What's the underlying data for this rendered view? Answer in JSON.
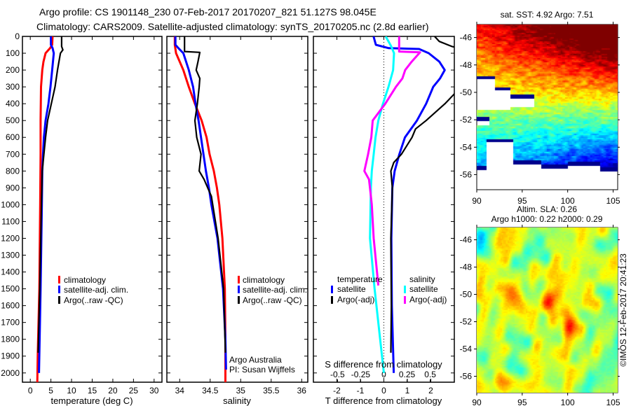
{
  "title": {
    "line1": "Argo profile: CS 1901148_230 07-Feb-2017 20170207_821 51.127S 98.045E",
    "line2": "Climatology: CARS2009. Satellite-adjusted climatology: synTS_20170205.nc (2.8d earlier)"
  },
  "colors": {
    "climatology": "#ff0000",
    "satellite": "#0000ff",
    "argo": "#000000",
    "sat_salinity": "#00ffff",
    "argo_salinity": "#ff00ff"
  },
  "depth_axis": {
    "ylim": [
      0,
      2055
    ],
    "ticks": [
      0,
      100,
      200,
      300,
      400,
      500,
      600,
      700,
      800,
      900,
      1000,
      1100,
      1200,
      1300,
      1400,
      1500,
      1600,
      1700,
      1800,
      1900,
      2000
    ]
  },
  "chart_data": [
    {
      "type": "line",
      "xlabel": "temperature (deg C)",
      "ylabel": "depth",
      "xlim": [
        -1.9,
        31.9
      ],
      "xticks": [
        0,
        5,
        10,
        15,
        20,
        25,
        30
      ],
      "legend": {
        "placement": "lower-left",
        "entries": [
          "climatology",
          "satellite-adj. clim.",
          "Argo(..raw -QC)"
        ]
      },
      "series": [
        {
          "name": "climatology",
          "color": "#ff0000",
          "depth": [
            0,
            50,
            70,
            100,
            150,
            200,
            300,
            500,
            700,
            1000,
            1500,
            1900,
            2055
          ],
          "values": [
            5.4,
            5.3,
            4.8,
            3.7,
            3.2,
            2.9,
            2.6,
            2.5,
            2.5,
            2.4,
            2.2,
            1.8,
            1.7
          ]
        },
        {
          "name": "satellite-adj. clim.",
          "color": "#0000ff",
          "depth": [
            0,
            50,
            70,
            100,
            200,
            300,
            400,
            500,
            600,
            700,
            800,
            1000,
            1500,
            2000
          ],
          "values": [
            5.0,
            5.0,
            5.4,
            5.7,
            5.3,
            4.9,
            4.4,
            3.7,
            3.3,
            3.1,
            2.9,
            2.8,
            2.5,
            2.1
          ]
        },
        {
          "name": "Argo(..raw -QC)",
          "color": "#000000",
          "depth": [
            0,
            60,
            80,
            100,
            200,
            300,
            400,
            500,
            600,
            700,
            800,
            1000,
            1500,
            1880
          ],
          "values": [
            7.6,
            7.6,
            7.9,
            7.3,
            6.6,
            6.0,
            5.1,
            4.2,
            3.7,
            3.3,
            2.9,
            2.7,
            2.3,
            1.9
          ]
        }
      ]
    },
    {
      "type": "line",
      "xlabel": "salinity",
      "xlim": [
        33.79,
        36.1
      ],
      "xticks": [
        34,
        34.5,
        35,
        35.5,
        36
      ],
      "legend": {
        "placement": "lower-center",
        "entries": [
          "climatology",
          "satellite-adj. clim.",
          "Argo(..raw -QC)"
        ]
      },
      "annotations": [
        "Argo Australia",
        "PI: Susan Wijffels"
      ],
      "series": [
        {
          "name": "climatology",
          "color": "#ff0000",
          "depth": [
            0,
            50,
            100,
            200,
            300,
            400,
            500,
            600,
            700,
            800,
            900,
            1000,
            1200,
            1500,
            1800,
            2055
          ],
          "values": [
            33.92,
            33.92,
            33.94,
            34.06,
            34.15,
            34.25,
            34.36,
            34.44,
            34.49,
            34.56,
            34.61,
            34.65,
            34.7,
            34.74,
            34.75,
            34.75
          ]
        },
        {
          "name": "satellite-adj. clim.",
          "color": "#0000ff",
          "depth": [
            0,
            50,
            70,
            100,
            200,
            300,
            400,
            500,
            600,
            700,
            800,
            900,
            1000,
            1200,
            1500,
            1800,
            1980
          ],
          "values": [
            33.93,
            33.93,
            33.98,
            34.06,
            34.15,
            34.22,
            34.26,
            34.31,
            34.35,
            34.39,
            34.43,
            34.48,
            34.52,
            34.62,
            34.71,
            34.75,
            34.76
          ]
        },
        {
          "name": "Argo(..raw -QC)",
          "color": "#000000",
          "depth": [
            0,
            90,
            95,
            150,
            200,
            250,
            300,
            400,
            500,
            600,
            700,
            800,
            850,
            950,
            1200,
            1500,
            1880
          ],
          "values": [
            34.08,
            34.08,
            34.33,
            34.3,
            34.27,
            34.33,
            34.32,
            34.29,
            34.25,
            34.28,
            34.35,
            34.32,
            34.4,
            34.52,
            34.63,
            34.72,
            34.75
          ]
        }
      ]
    },
    {
      "type": "line",
      "xlabel": "T difference from climatology",
      "xlim": [
        -3,
        3
      ],
      "xticks": [
        -2,
        -1,
        0,
        1,
        2
      ],
      "x2label": "S difference from climatology",
      "x2lim": [
        -0.76,
        0.76
      ],
      "x2ticks": [
        -0.5,
        -0.25,
        0,
        0.25,
        0.5
      ],
      "x2ticklabels": [
        "-0.5",
        "-0.25",
        "0",
        "0.25",
        "0.5"
      ],
      "legend": {
        "placement": "lower-center",
        "groups": [
          {
            "title": "temperature",
            "entries": [
              "satellite",
              "Argo(-adj)"
            ]
          },
          {
            "title": "salinity",
            "entries": [
              "satellite",
              "Argo(-adj)"
            ]
          }
        ]
      },
      "series": [
        {
          "name": "temperature satellite",
          "axis": "T",
          "color": "#0000ff",
          "depth": [
            0,
            50,
            70,
            75,
            100,
            150,
            200,
            250,
            300,
            400,
            500,
            600,
            700,
            800,
            900,
            1200,
            1600,
            2000
          ],
          "values": [
            -0.44,
            -0.34,
            0.21,
            1.5,
            1.91,
            2.36,
            2.59,
            2.39,
            2.1,
            1.8,
            1.41,
            0.9,
            0.66,
            0.46,
            0.36,
            0.32,
            0.34,
            0.42
          ]
        },
        {
          "name": "temperature Argo(-adj)",
          "axis": "T",
          "color": "#000000",
          "depth": [
            0,
            30,
            60,
            80,
            200,
            342,
            400,
            500,
            550,
            600,
            700,
            750,
            800,
            900,
            1200,
            1600,
            1880
          ],
          "values": [
            2.16,
            2.36,
            2.9,
            3.6,
            3.5,
            3.0,
            2.6,
            1.8,
            1.35,
            1.2,
            0.75,
            0.42,
            0.3,
            0.36,
            0.3,
            0.32,
            0.3
          ]
        },
        {
          "name": "salinity satellite",
          "axis": "S",
          "color": "#00ffff",
          "depth": [
            0,
            60,
            100,
            200,
            300,
            400,
            500,
            600,
            700,
            800,
            900,
            1200,
            1500,
            1800,
            2000
          ],
          "values": [
            0.02,
            0.08,
            0.11,
            0.1,
            0.05,
            -0.01,
            -0.06,
            -0.09,
            -0.11,
            -0.13,
            -0.14,
            -0.15,
            -0.1,
            -0.04,
            0.0
          ]
        },
        {
          "name": "salinity Argo(-adj)",
          "axis": "S",
          "color": "#ff00ff",
          "depth": [
            0,
            90,
            95,
            150,
            200,
            250,
            300,
            400,
            500,
            600,
            700,
            800,
            850,
            900,
            1000,
            1200,
            1480
          ],
          "values": [
            0.165,
            0.165,
            0.39,
            0.3,
            0.23,
            0.2,
            0.13,
            0.015,
            -0.12,
            -0.135,
            -0.17,
            -0.21,
            -0.16,
            -0.15,
            -0.13,
            -0.11,
            -0.06
          ]
        }
      ]
    },
    {
      "type": "heatmap",
      "title": "sat. SST: 4.92 Argo: 7.51",
      "xlim": [
        90,
        105.5
      ],
      "ylim": [
        -57.1,
        -45.05
      ],
      "xticks": [
        90,
        95,
        100,
        105
      ],
      "yticks": [
        -46,
        -48,
        -50,
        -52,
        -54,
        -56
      ]
    },
    {
      "type": "heatmap",
      "title_line1": "Altim. SLA: 0.26",
      "title_line2": "Argo h1000: 0.22 h2000: 0.29",
      "xlim": [
        90,
        105.5
      ],
      "ylim": [
        -57.2,
        -45.1
      ],
      "xticks": [
        90,
        95,
        100,
        105
      ],
      "yticks": [
        -46,
        -48,
        -50,
        -52,
        -54,
        -56
      ]
    }
  ],
  "legend_labels": {
    "climatology": "climatology",
    "sat_clim": "satellite-adj. clim.",
    "argo_raw": "Argo(..raw -QC)",
    "temperature": "temperature",
    "salinity": "salinity",
    "satellite": "satellite",
    "argo_adj": "Argo(-adj)"
  },
  "watermark": "©IMOS 12-Feb-2017 20:41:23"
}
